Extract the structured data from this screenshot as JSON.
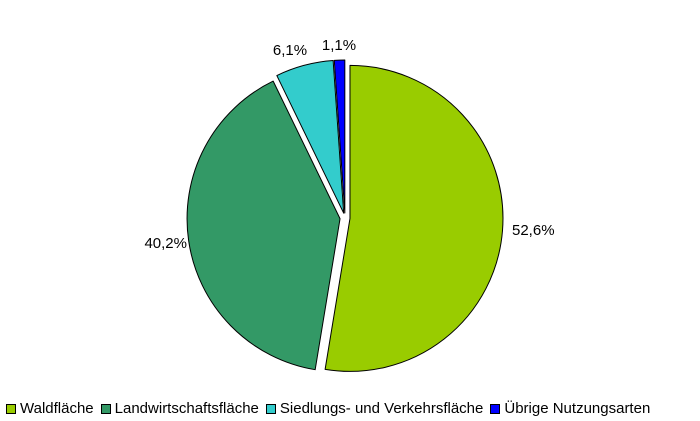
{
  "chart_data": {
    "type": "pie",
    "slices": [
      {
        "label": "Waldfläche",
        "value": 52.6,
        "display": "52,6%",
        "color": "#99cc00"
      },
      {
        "label": "Landwirtschaftsfläche",
        "value": 40.2,
        "display": "40,2%",
        "color": "#339966"
      },
      {
        "label": "Siedlungs- und Verkehrsfläche",
        "value": 6.1,
        "display": "6,1%",
        "color": "#33cccc"
      },
      {
        "label": "Übrige Nutzungsarten",
        "value": 1.1,
        "display": "1,1%",
        "color": "#0000ff"
      }
    ],
    "exploded": true,
    "start_direction": "top",
    "order": "clockwise",
    "legend_position": "bottom"
  }
}
